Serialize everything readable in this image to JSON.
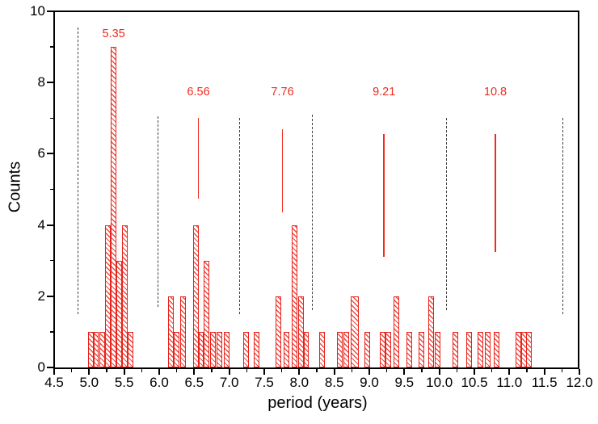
{
  "chart_data": {
    "type": "bar",
    "subtype": "histogram",
    "title": "",
    "xlabel": "period (years)",
    "ylabel": "Counts",
    "xlim": [
      4.5,
      12.0
    ],
    "ylim": [
      0,
      10
    ],
    "grid": false,
    "legend": "none",
    "x_major_tick_step": 0.5,
    "x_minor_tick_step": 0.25,
    "y_major_tick_step": 2,
    "y_minor_tick_step": 1,
    "x_tick_labels": [
      "4.5",
      "5.0",
      "5.5",
      "6.0",
      "6.5",
      "7.0",
      "7.5",
      "8.0",
      "8.5",
      "9.0",
      "9.5",
      "10.0",
      "10.5",
      "11.0",
      "11.5",
      "12.0"
    ],
    "y_tick_labels": [
      "0",
      "2",
      "4",
      "6",
      "8",
      "10"
    ],
    "bin_width_years": 0.08,
    "bars": [
      {
        "x": 5.02,
        "count": 1
      },
      {
        "x": 5.1,
        "count": 1
      },
      {
        "x": 5.19,
        "count": 1
      },
      {
        "x": 5.27,
        "count": 4
      },
      {
        "x": 5.35,
        "count": 9
      },
      {
        "x": 5.43,
        "count": 3
      },
      {
        "x": 5.51,
        "count": 4
      },
      {
        "x": 5.59,
        "count": 1
      },
      {
        "x": 6.17,
        "count": 2
      },
      {
        "x": 6.25,
        "count": 1
      },
      {
        "x": 6.34,
        "count": 2
      },
      {
        "x": 6.52,
        "count": 4
      },
      {
        "x": 6.6,
        "count": 1
      },
      {
        "x": 6.68,
        "count": 3
      },
      {
        "x": 6.77,
        "count": 1
      },
      {
        "x": 6.86,
        "count": 1
      },
      {
        "x": 6.96,
        "count": 1
      },
      {
        "x": 7.24,
        "count": 1
      },
      {
        "x": 7.39,
        "count": 1
      },
      {
        "x": 7.7,
        "count": 2
      },
      {
        "x": 7.82,
        "count": 1
      },
      {
        "x": 7.93,
        "count": 4
      },
      {
        "x": 8.02,
        "count": 2
      },
      {
        "x": 8.1,
        "count": 1
      },
      {
        "x": 8.32,
        "count": 1
      },
      {
        "x": 8.58,
        "count": 1
      },
      {
        "x": 8.67,
        "count": 1
      },
      {
        "x": 8.79,
        "count": 2,
        "w": 0.115
      },
      {
        "x": 8.97,
        "count": 1
      },
      {
        "x": 9.19,
        "count": 1
      },
      {
        "x": 9.27,
        "count": 1
      },
      {
        "x": 9.39,
        "count": 2
      },
      {
        "x": 9.57,
        "count": 1
      },
      {
        "x": 9.74,
        "count": 1
      },
      {
        "x": 9.88,
        "count": 2
      },
      {
        "x": 9.97,
        "count": 1
      },
      {
        "x": 10.23,
        "count": 1
      },
      {
        "x": 10.43,
        "count": 1
      },
      {
        "x": 10.59,
        "count": 1
      },
      {
        "x": 10.69,
        "count": 1
      },
      {
        "x": 10.82,
        "count": 1
      },
      {
        "x": 11.13,
        "count": 1
      },
      {
        "x": 11.21,
        "count": 1
      },
      {
        "x": 11.28,
        "count": 1
      }
    ],
    "peak_markers": [
      {
        "x": 5.35,
        "label": "5.35",
        "label_y": 9.35,
        "line": null
      },
      {
        "x": 6.56,
        "label": "6.56",
        "label_y": 7.7,
        "line": [
          4.75,
          7.0
        ]
      },
      {
        "x": 7.76,
        "label": "7.76",
        "label_y": 7.7,
        "line": [
          4.35,
          6.7
        ]
      },
      {
        "x": 9.21,
        "label": "9.21",
        "label_y": 7.7,
        "line": [
          3.1,
          6.55
        ]
      },
      {
        "x": 10.8,
        "label": "10.8",
        "label_y": 7.7,
        "line": [
          3.25,
          6.55
        ]
      }
    ],
    "dashed_lines": [
      {
        "x": 4.84,
        "y": [
          1.5,
          9.55
        ]
      },
      {
        "x": 5.98,
        "y": [
          1.7,
          7.05
        ]
      },
      {
        "x": 7.15,
        "y": [
          1.5,
          7.0
        ]
      },
      {
        "x": 8.19,
        "y": [
          1.6,
          7.1
        ]
      },
      {
        "x": 10.1,
        "y": [
          1.6,
          7.0
        ]
      },
      {
        "x": 11.76,
        "y": [
          1.5,
          7.0
        ]
      }
    ],
    "colors": {
      "bar_outline": "#e8231c",
      "bar_hatch": "#ee4a40",
      "marker": "#f02a1e",
      "dashed": "#3f3f3f",
      "axis": "#000000",
      "background": "#ffffff"
    }
  }
}
